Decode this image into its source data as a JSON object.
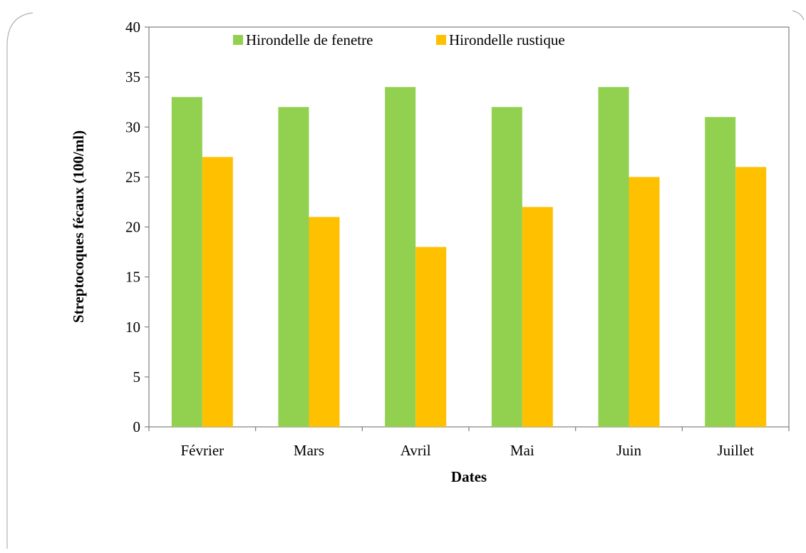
{
  "chart_data": {
    "type": "bar",
    "title": "",
    "xlabel": "Dates",
    "ylabel": "Streptocoques fécaux (100/ml)",
    "ylim": [
      0,
      40
    ],
    "yticks": [
      "0",
      "5",
      "10",
      "15",
      "20",
      "25",
      "30",
      "35",
      "40"
    ],
    "categories": [
      "Février",
      "Mars",
      "Avril",
      "Mai",
      "Juin",
      "Juillet"
    ],
    "series": [
      {
        "name": "Hirondelle de fenetre",
        "color": "#92d050",
        "values": [
          33,
          32,
          34,
          32,
          34,
          31
        ]
      },
      {
        "name": "Hirondelle rustique",
        "color": "#ffc000",
        "values": [
          27,
          21,
          18,
          22,
          25,
          26
        ]
      }
    ],
    "grid": false,
    "legend_position": "top-center"
  }
}
